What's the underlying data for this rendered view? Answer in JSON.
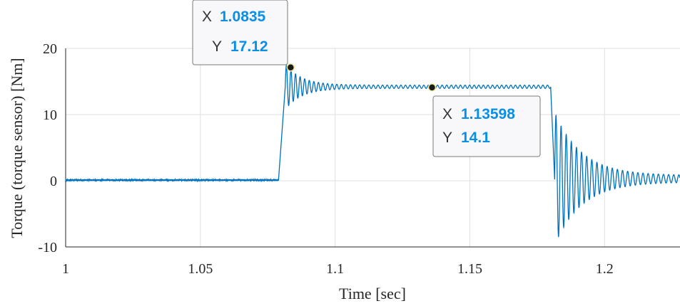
{
  "chart_data": {
    "type": "line",
    "xlabel": "Time [sec]",
    "ylabel": "Torque (torque sensor) [Nm]",
    "xlim": [
      1.0,
      1.228
    ],
    "ylim": [
      -10,
      20
    ],
    "x_ticks": [
      "1",
      "1.05",
      "1.1",
      "1.15",
      "1.2"
    ],
    "x_tick_values": [
      1.0,
      1.05,
      1.1,
      1.15,
      1.2
    ],
    "y_ticks": [
      "20",
      "10",
      "0",
      "-10"
    ],
    "y_tick_values": [
      20,
      10,
      0,
      -10
    ],
    "grid": true,
    "line_color": "#0072bd",
    "series": [
      {
        "segments": [
          {
            "t0": 1.0,
            "t1": 1.079,
            "kind": "flat",
            "level": 0.1
          },
          {
            "t0": 1.079,
            "t1": 1.0815,
            "kind": "ramp",
            "from": 0.1,
            "to": 14.2
          },
          {
            "t0": 1.0815,
            "t1": 1.18,
            "kind": "ringing",
            "level": 14.2,
            "amplitude": 3.2,
            "decay": 0.006,
            "period": 0.0017,
            "floor": 0.25
          },
          {
            "t0": 1.18,
            "t1": 1.1815,
            "kind": "ramp",
            "from": 14.2,
            "to": 0.0
          },
          {
            "t0": 1.1815,
            "t1": 1.228,
            "kind": "ringing",
            "level": 0.3,
            "amplitude": 9.5,
            "decay": 0.01,
            "period": 0.0019,
            "floor": 0.5
          }
        ]
      }
    ],
    "datatips": [
      {
        "x_label": "X",
        "x_value": "1.0835",
        "y_label": "Y",
        "y_value": "17.12",
        "x": 1.0835,
        "y": 17.12
      },
      {
        "x_label": "X",
        "x_value": "1.13598",
        "y_label": "Y",
        "y_value": "14.1",
        "x": 1.13598,
        "y": 14.1
      }
    ]
  }
}
